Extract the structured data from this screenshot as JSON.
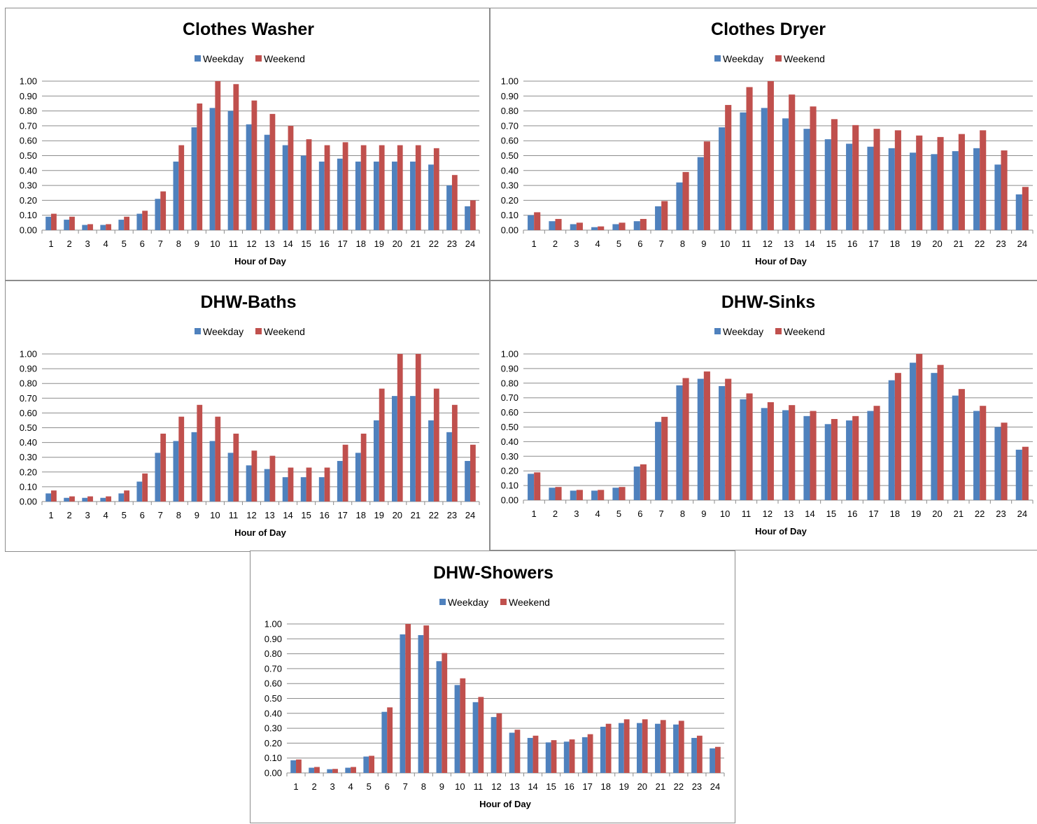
{
  "colors": {
    "weekday": "#4f81bd",
    "weekend": "#c0504d",
    "grid": "#8c8c8c"
  },
  "chart_data": [
    {
      "type": "bar",
      "title": "Clothes Washer",
      "xlabel": "Hour of Day",
      "ylabel": "",
      "ylim": [
        0,
        1
      ],
      "yticks": [
        "0.00",
        "0.10",
        "0.20",
        "0.30",
        "0.40",
        "0.50",
        "0.60",
        "0.70",
        "0.80",
        "0.90",
        "1.00"
      ],
      "categories": [
        "1",
        "2",
        "3",
        "4",
        "5",
        "6",
        "7",
        "8",
        "9",
        "10",
        "11",
        "12",
        "13",
        "14",
        "15",
        "16",
        "17",
        "18",
        "19",
        "20",
        "21",
        "22",
        "23",
        "24"
      ],
      "legend": "top-center",
      "grid": true,
      "series": [
        {
          "name": "Weekday",
          "values": [
            0.09,
            0.07,
            0.035,
            0.035,
            0.07,
            0.11,
            0.21,
            0.46,
            0.69,
            0.82,
            0.8,
            0.71,
            0.64,
            0.57,
            0.5,
            0.46,
            0.48,
            0.46,
            0.46,
            0.46,
            0.46,
            0.44,
            0.3,
            0.16
          ]
        },
        {
          "name": "Weekend",
          "values": [
            0.11,
            0.09,
            0.04,
            0.04,
            0.09,
            0.13,
            0.26,
            0.57,
            0.85,
            1.0,
            0.98,
            0.87,
            0.78,
            0.7,
            0.61,
            0.57,
            0.59,
            0.57,
            0.57,
            0.57,
            0.57,
            0.55,
            0.37,
            0.2
          ]
        }
      ]
    },
    {
      "type": "bar",
      "title": "Clothes Dryer",
      "xlabel": "Hour of Day",
      "ylabel": "",
      "ylim": [
        0,
        1
      ],
      "yticks": [
        "0.00",
        "0.10",
        "0.20",
        "0.30",
        "0.40",
        "0.50",
        "0.60",
        "0.70",
        "0.80",
        "0.90",
        "1.00"
      ],
      "categories": [
        "1",
        "2",
        "3",
        "4",
        "5",
        "6",
        "7",
        "8",
        "9",
        "10",
        "11",
        "12",
        "13",
        "14",
        "15",
        "16",
        "17",
        "18",
        "19",
        "20",
        "21",
        "22",
        "23",
        "24"
      ],
      "legend": "top-center",
      "grid": true,
      "series": [
        {
          "name": "Weekday",
          "values": [
            0.1,
            0.06,
            0.04,
            0.02,
            0.04,
            0.06,
            0.16,
            0.32,
            0.49,
            0.69,
            0.79,
            0.82,
            0.75,
            0.68,
            0.61,
            0.58,
            0.56,
            0.55,
            0.52,
            0.51,
            0.53,
            0.55,
            0.44,
            0.24
          ]
        },
        {
          "name": "Weekend",
          "values": [
            0.12,
            0.075,
            0.05,
            0.025,
            0.05,
            0.075,
            0.195,
            0.39,
            0.595,
            0.84,
            0.96,
            1.0,
            0.91,
            0.83,
            0.745,
            0.705,
            0.68,
            0.67,
            0.635,
            0.625,
            0.645,
            0.67,
            0.535,
            0.29
          ]
        }
      ]
    },
    {
      "type": "bar",
      "title": "DHW-Baths",
      "xlabel": "Hour of Day",
      "ylabel": "",
      "ylim": [
        0,
        1
      ],
      "yticks": [
        "0.00",
        "0.10",
        "0.20",
        "0.30",
        "0.40",
        "0.50",
        "0.60",
        "0.70",
        "0.80",
        "0.90",
        "1.00"
      ],
      "categories": [
        "1",
        "2",
        "3",
        "4",
        "5",
        "6",
        "7",
        "8",
        "9",
        "10",
        "11",
        "12",
        "13",
        "14",
        "15",
        "16",
        "17",
        "18",
        "19",
        "20",
        "21",
        "22",
        "23",
        "24"
      ],
      "legend": "top-center",
      "grid": true,
      "series": [
        {
          "name": "Weekday",
          "values": [
            0.055,
            0.025,
            0.025,
            0.025,
            0.055,
            0.135,
            0.33,
            0.41,
            0.47,
            0.41,
            0.33,
            0.245,
            0.22,
            0.165,
            0.165,
            0.165,
            0.275,
            0.33,
            0.55,
            0.715,
            0.715,
            0.55,
            0.47,
            0.275
          ]
        },
        {
          "name": "Weekend",
          "values": [
            0.075,
            0.035,
            0.035,
            0.035,
            0.075,
            0.19,
            0.46,
            0.575,
            0.655,
            0.575,
            0.46,
            0.345,
            0.31,
            0.23,
            0.23,
            0.23,
            0.385,
            0.46,
            0.765,
            1.0,
            1.0,
            0.765,
            0.655,
            0.385
          ]
        }
      ]
    },
    {
      "type": "bar",
      "title": "DHW-Sinks",
      "xlabel": "Hour of Day",
      "ylabel": "",
      "ylim": [
        0,
        1
      ],
      "yticks": [
        "0.00",
        "0.10",
        "0.20",
        "0.30",
        "0.40",
        "0.50",
        "0.60",
        "0.70",
        "0.80",
        "0.90",
        "1.00"
      ],
      "categories": [
        "1",
        "2",
        "3",
        "4",
        "5",
        "6",
        "7",
        "8",
        "9",
        "10",
        "11",
        "12",
        "13",
        "14",
        "15",
        "16",
        "17",
        "18",
        "19",
        "20",
        "21",
        "22",
        "23",
        "24"
      ],
      "legend": "top-center",
      "grid": true,
      "series": [
        {
          "name": "Weekday",
          "values": [
            0.18,
            0.085,
            0.065,
            0.065,
            0.085,
            0.23,
            0.535,
            0.785,
            0.83,
            0.78,
            0.69,
            0.63,
            0.615,
            0.575,
            0.52,
            0.545,
            0.61,
            0.82,
            0.94,
            0.87,
            0.715,
            0.61,
            0.5,
            0.345
          ]
        },
        {
          "name": "Weekend",
          "values": [
            0.19,
            0.09,
            0.07,
            0.07,
            0.09,
            0.245,
            0.57,
            0.835,
            0.88,
            0.83,
            0.73,
            0.67,
            0.65,
            0.61,
            0.555,
            0.575,
            0.645,
            0.87,
            1.0,
            0.925,
            0.76,
            0.645,
            0.53,
            0.365
          ]
        }
      ]
    },
    {
      "type": "bar",
      "title": "DHW-Showers",
      "xlabel": "Hour of Day",
      "ylabel": "",
      "ylim": [
        0,
        1
      ],
      "yticks": [
        "0.00",
        "0.10",
        "0.20",
        "0.30",
        "0.40",
        "0.50",
        "0.60",
        "0.70",
        "0.80",
        "0.90",
        "1.00"
      ],
      "categories": [
        "1",
        "2",
        "3",
        "4",
        "5",
        "6",
        "7",
        "8",
        "9",
        "10",
        "11",
        "12",
        "13",
        "14",
        "15",
        "16",
        "17",
        "18",
        "19",
        "20",
        "21",
        "22",
        "23",
        "24"
      ],
      "legend": "top-center",
      "grid": true,
      "series": [
        {
          "name": "Weekday",
          "values": [
            0.085,
            0.035,
            0.025,
            0.035,
            0.11,
            0.41,
            0.93,
            0.925,
            0.75,
            0.59,
            0.475,
            0.375,
            0.27,
            0.235,
            0.205,
            0.21,
            0.24,
            0.31,
            0.335,
            0.335,
            0.33,
            0.325,
            0.235,
            0.165
          ]
        },
        {
          "name": "Weekend",
          "values": [
            0.09,
            0.04,
            0.027,
            0.04,
            0.115,
            0.44,
            1.0,
            0.99,
            0.805,
            0.635,
            0.51,
            0.4,
            0.29,
            0.25,
            0.22,
            0.225,
            0.26,
            0.33,
            0.36,
            0.36,
            0.355,
            0.35,
            0.25,
            0.175
          ]
        }
      ]
    }
  ]
}
